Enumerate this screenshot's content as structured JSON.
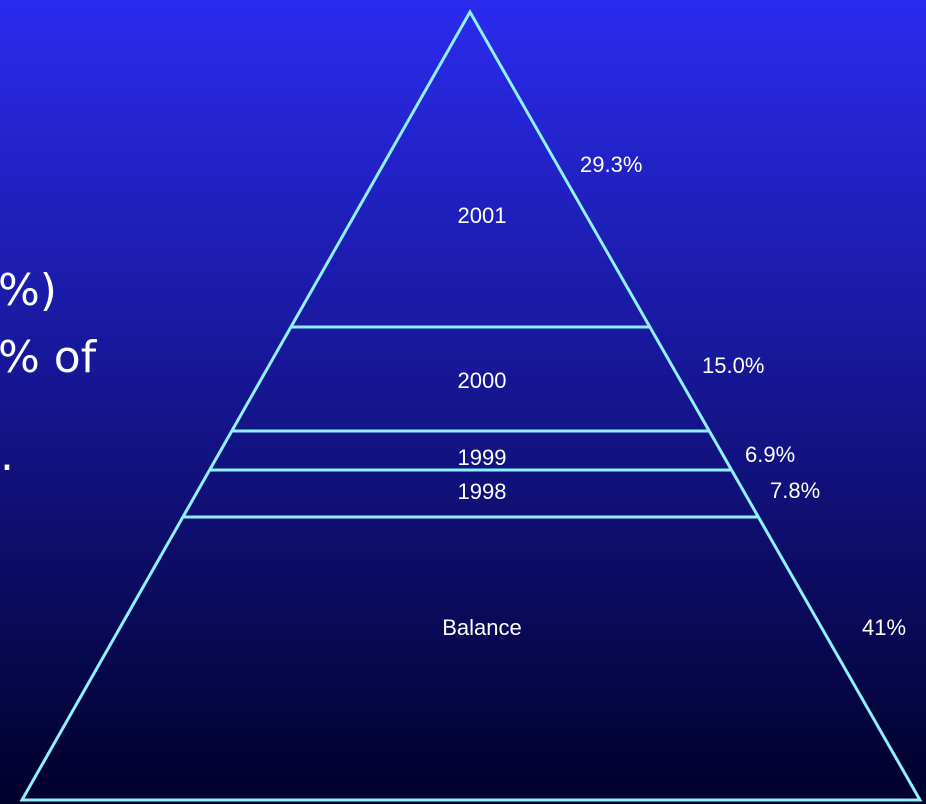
{
  "side_text": [
    "%)",
    "% of",
    "."
  ],
  "layers": [
    {
      "label": "2001",
      "share": "29.3%"
    },
    {
      "label": "2000",
      "share": "15.0%"
    },
    {
      "label": "1999",
      "share": "6.9%"
    },
    {
      "label": "1998",
      "share": "7.8%"
    },
    {
      "label": "Balance",
      "share": "41%"
    }
  ]
}
